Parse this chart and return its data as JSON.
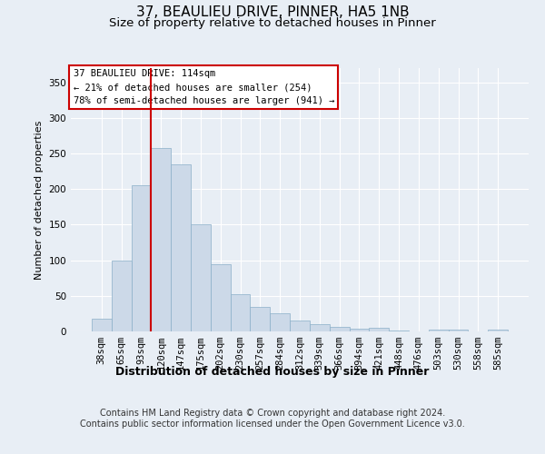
{
  "title": "37, BEAULIEU DRIVE, PINNER, HA5 1NB",
  "subtitle": "Size of property relative to detached houses in Pinner",
  "xlabel": "Distribution of detached houses by size in Pinner",
  "ylabel": "Number of detached properties",
  "categories": [
    "38sqm",
    "65sqm",
    "93sqm",
    "120sqm",
    "147sqm",
    "175sqm",
    "202sqm",
    "230sqm",
    "257sqm",
    "284sqm",
    "312sqm",
    "339sqm",
    "366sqm",
    "394sqm",
    "421sqm",
    "448sqm",
    "476sqm",
    "503sqm",
    "530sqm",
    "558sqm",
    "585sqm"
  ],
  "bar_heights": [
    18,
    100,
    205,
    258,
    235,
    150,
    95,
    52,
    35,
    26,
    15,
    10,
    6,
    4,
    5,
    1,
    0,
    2,
    3,
    0,
    2
  ],
  "bar_color": "#ccd9e8",
  "bar_edge_color": "#8aafc8",
  "ylim": [
    0,
    370
  ],
  "yticks": [
    0,
    50,
    100,
    150,
    200,
    250,
    300,
    350
  ],
  "vline_x_index": 3,
  "vline_color": "#cc0000",
  "annotation_title": "37 BEAULIEU DRIVE: 114sqm",
  "annotation_line1": "← 21% of detached houses are smaller (254)",
  "annotation_line2": "78% of semi-detached houses are larger (941) →",
  "annotation_box_color": "#ffffff",
  "annotation_box_edge": "#cc0000",
  "footer1": "Contains HM Land Registry data © Crown copyright and database right 2024.",
  "footer2": "Contains public sector information licensed under the Open Government Licence v3.0.",
  "background_color": "#e8eef5",
  "plot_bg_color": "#e8eef5",
  "grid_color": "#ffffff",
  "title_fontsize": 11,
  "subtitle_fontsize": 9.5,
  "xlabel_fontsize": 9,
  "ylabel_fontsize": 8,
  "tick_fontsize": 7.5,
  "footer_fontsize": 7
}
